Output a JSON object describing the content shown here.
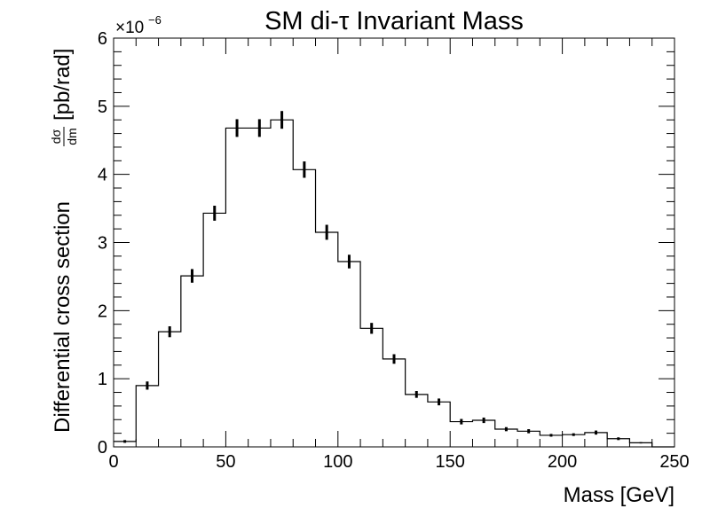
{
  "chart_data": {
    "type": "bar",
    "title": "SM di-τ Invariant Mass",
    "xlabel": "Mass [GeV]",
    "ylabel": "Differential cross section",
    "ylabel_fraction_num": "dσ",
    "ylabel_fraction_den": "dm",
    "ylabel_unit": "[pb/rad]",
    "y_multiplier_base": "×10",
    "y_multiplier_exp": "−6",
    "xlim": [
      0,
      250
    ],
    "ylim": [
      0,
      6
    ],
    "x_ticks": [
      "0",
      "50",
      "100",
      "150",
      "200",
      "250"
    ],
    "y_ticks": [
      "0",
      "1",
      "2",
      "3",
      "4",
      "5",
      "6"
    ],
    "grid": false,
    "bin_edges": [
      0,
      10,
      20,
      30,
      40,
      50,
      60,
      70,
      80,
      90,
      100,
      110,
      120,
      130,
      140,
      150,
      160,
      170,
      180,
      190,
      200,
      210,
      220,
      230,
      240,
      250
    ],
    "values": [
      0.08,
      0.9,
      1.69,
      2.51,
      3.43,
      4.68,
      4.68,
      4.8,
      4.07,
      3.15,
      2.72,
      1.74,
      1.29,
      0.77,
      0.66,
      0.37,
      0.39,
      0.26,
      0.23,
      0.17,
      0.18,
      0.21,
      0.12,
      0.06,
      0.0
    ],
    "errors": [
      0.02,
      0.06,
      0.08,
      0.1,
      0.11,
      0.13,
      0.13,
      0.13,
      0.12,
      0.11,
      0.1,
      0.08,
      0.07,
      0.05,
      0.05,
      0.04,
      0.04,
      0.03,
      0.03,
      0.02,
      0.02,
      0.03,
      0.02,
      0.01,
      0.0
    ]
  }
}
